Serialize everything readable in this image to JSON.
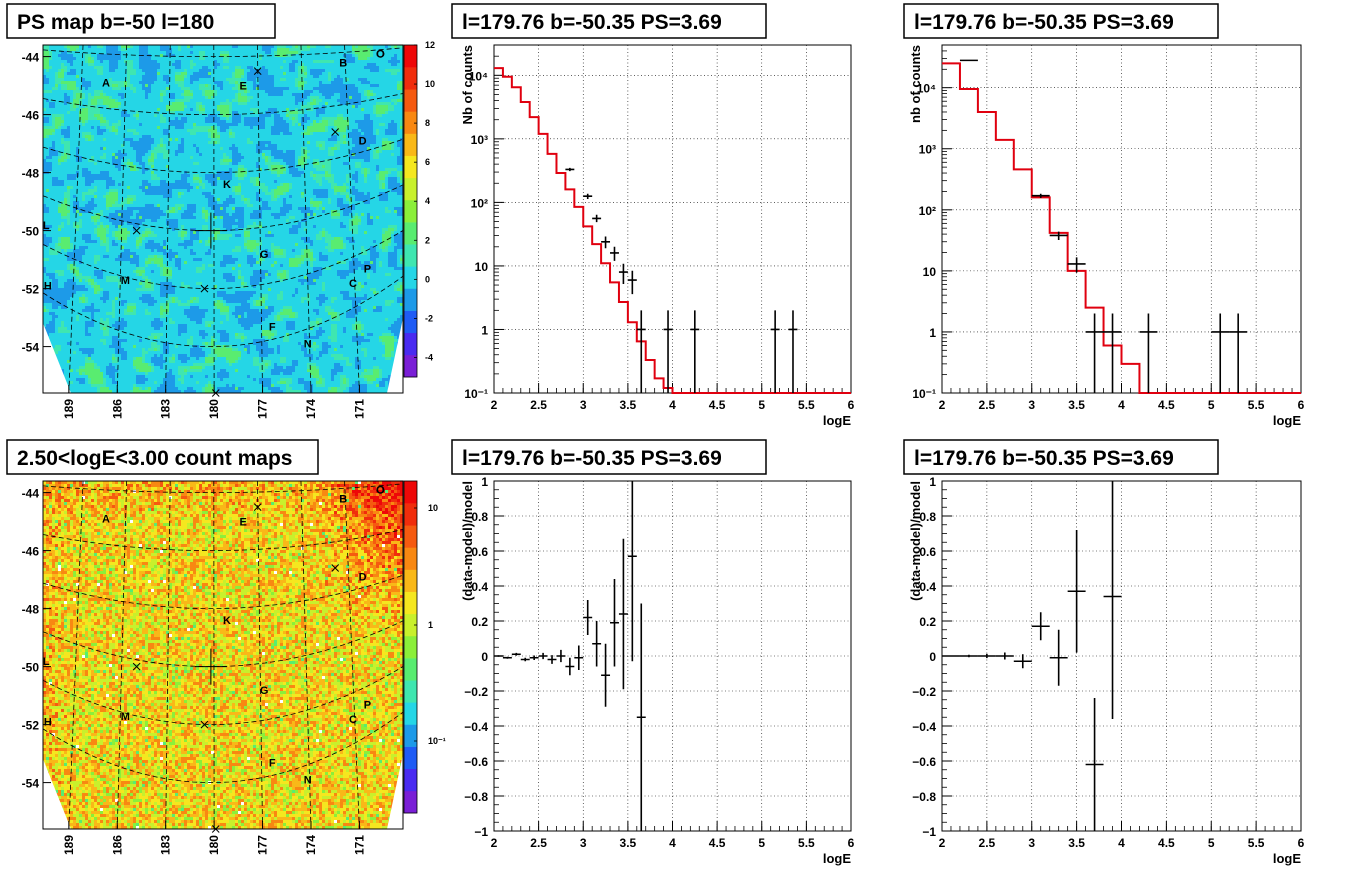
{
  "chart_data": [
    {
      "id": "ps_map",
      "type": "heatmap",
      "title": "PS map b=-50 l=180",
      "yticks": [
        -44,
        -46,
        -48,
        -50,
        -52,
        -54
      ],
      "xticks": [
        189,
        186,
        183,
        180,
        177,
        174,
        171
      ],
      "zticks": [
        "12",
        "10",
        "8",
        "6",
        "4",
        "2",
        "0",
        "-2",
        "-4"
      ],
      "zlim": [
        -5,
        12
      ],
      "colormap": [
        "#7a1fd6",
        "#4a2bf0",
        "#1f5cf5",
        "#1d9ae8",
        "#25d6e6",
        "#3fe6b0",
        "#59ec70",
        "#8bef3a",
        "#c8f02c",
        "#f5e71f",
        "#f9b818",
        "#f88812",
        "#f55a10",
        "#f02d0c",
        "#ee0808"
      ],
      "labels": [
        {
          "text": "A",
          "l": 186.7,
          "b": -44.9
        },
        {
          "text": "B",
          "l": 172.0,
          "b": -44.2
        },
        {
          "text": "E",
          "l": 178.2,
          "b": -45.0
        },
        {
          "text": "D",
          "l": 170.8,
          "b": -46.9
        },
        {
          "text": "K",
          "l": 179.2,
          "b": -48.4
        },
        {
          "text": "L",
          "l": 190.4,
          "b": -49.8
        },
        {
          "text": "G",
          "l": 176.9,
          "b": -50.8
        },
        {
          "text": "P",
          "l": 170.5,
          "b": -51.3
        },
        {
          "text": "H",
          "l": 190.3,
          "b": -51.9
        },
        {
          "text": "M",
          "l": 185.5,
          "b": -51.7
        },
        {
          "text": "C",
          "l": 171.4,
          "b": -51.8
        },
        {
          "text": "F",
          "l": 176.4,
          "b": -53.3
        },
        {
          "text": "N",
          "l": 174.2,
          "b": -53.9
        },
        {
          "text": "O",
          "l": 169.7,
          "b": -43.9
        }
      ],
      "markers": [
        {
          "l": 177.3,
          "b": -44.5
        },
        {
          "l": 172.5,
          "b": -46.6
        },
        {
          "l": 184.8,
          "b": -50.0
        },
        {
          "l": 180.6,
          "b": -52.0
        },
        {
          "l": 179.9,
          "b": -55.6
        }
      ],
      "center": {
        "l": 180.2,
        "b": -50.0
      }
    },
    {
      "id": "count_map",
      "type": "heatmap",
      "title": "2.50<logE<3.00 count maps",
      "yticks": [
        -44,
        -46,
        -48,
        -50,
        -52,
        -54
      ],
      "xticks": [
        189,
        186,
        183,
        180,
        177,
        174,
        171
      ],
      "zticks": [
        "10",
        "1",
        "10⁻¹"
      ],
      "zscale": "log",
      "colormap": [
        "#7a1fd6",
        "#4a2bf0",
        "#1f5cf5",
        "#1d9ae8",
        "#25d6e6",
        "#3fe6b0",
        "#59ec70",
        "#8bef3a",
        "#c8f02c",
        "#f5e71f",
        "#f9b818",
        "#f88812",
        "#f55a10",
        "#f02d0c",
        "#ee0808"
      ],
      "labels": [
        {
          "text": "A",
          "l": 186.7,
          "b": -44.9
        },
        {
          "text": "B",
          "l": 172.0,
          "b": -44.2
        },
        {
          "text": "E",
          "l": 178.2,
          "b": -45.0
        },
        {
          "text": "D",
          "l": 170.8,
          "b": -46.9
        },
        {
          "text": "K",
          "l": 179.2,
          "b": -48.4
        },
        {
          "text": "L",
          "l": 190.4,
          "b": -49.8
        },
        {
          "text": "G",
          "l": 176.9,
          "b": -50.8
        },
        {
          "text": "P",
          "l": 170.5,
          "b": -51.3
        },
        {
          "text": "H",
          "l": 190.3,
          "b": -51.9
        },
        {
          "text": "M",
          "l": 185.5,
          "b": -51.7
        },
        {
          "text": "C",
          "l": 171.4,
          "b": -51.8
        },
        {
          "text": "F",
          "l": 176.4,
          "b": -53.3
        },
        {
          "text": "N",
          "l": 174.2,
          "b": -53.9
        },
        {
          "text": "O",
          "l": 169.7,
          "b": -43.9
        }
      ],
      "markers": [
        {
          "l": 177.3,
          "b": -44.5
        },
        {
          "l": 172.5,
          "b": -46.6
        },
        {
          "l": 184.8,
          "b": -50.0
        },
        {
          "l": 180.6,
          "b": -52.0
        },
        {
          "l": 179.9,
          "b": -55.6
        }
      ],
      "center": {
        "l": 180.2,
        "b": -50.0
      }
    },
    {
      "id": "spec1",
      "type": "line",
      "title": "l=179.76 b=-50.35 PS=3.69",
      "xlabel": "logE",
      "ylabel": "Nb of counts",
      "xlim": [
        2,
        6
      ],
      "ylim": [
        0.1,
        30000
      ],
      "yscale": "log",
      "xticks": [
        "2",
        "2.5",
        "3",
        "3.5",
        "4",
        "4.5",
        "5",
        "5.5",
        "6"
      ],
      "yticks": [
        "10⁻¹",
        "1",
        "10",
        "10²",
        "10³",
        "10⁴"
      ],
      "model": {
        "edges": [
          2.0,
          2.1,
          2.2,
          2.3,
          2.4,
          2.5,
          2.6,
          2.7,
          2.8,
          2.9,
          3.0,
          3.1,
          3.2,
          3.3,
          3.4,
          3.5,
          3.6,
          3.7,
          3.8,
          3.9,
          4.0,
          6.0
        ],
        "values": [
          13000,
          9500,
          6500,
          3800,
          2200,
          1200,
          580,
          290,
          160,
          85,
          42,
          22,
          11,
          5.5,
          2.7,
          1.3,
          0.65,
          0.33,
          0.17,
          0.12,
          0.1
        ]
      },
      "data": [
        {
          "x": 2.85,
          "y": 330,
          "lo": 310,
          "hi": 350,
          "xerr": 0.05
        },
        {
          "x": 3.05,
          "y": 125,
          "lo": 113,
          "hi": 137,
          "xerr": 0.05
        },
        {
          "x": 3.15,
          "y": 56,
          "lo": 49,
          "hi": 64,
          "xerr": 0.05
        },
        {
          "x": 3.25,
          "y": 24,
          "lo": 19,
          "hi": 29,
          "xerr": 0.05
        },
        {
          "x": 3.35,
          "y": 16,
          "lo": 12,
          "hi": 20,
          "xerr": 0.05
        },
        {
          "x": 3.45,
          "y": 8,
          "lo": 5.2,
          "hi": 10.8,
          "xerr": 0.05
        },
        {
          "x": 3.55,
          "y": 6,
          "lo": 3.6,
          "hi": 8.4,
          "xerr": 0.05
        },
        {
          "x": 3.65,
          "y": 1,
          "lo": 0.1,
          "hi": 2,
          "xerr": 0.05
        },
        {
          "x": 3.95,
          "y": 1,
          "lo": 0.1,
          "hi": 2,
          "xerr": 0.05
        },
        {
          "x": 4.25,
          "y": 1,
          "lo": 0.1,
          "hi": 2,
          "xerr": 0.05
        },
        {
          "x": 5.15,
          "y": 1,
          "lo": 0.1,
          "hi": 2,
          "xerr": 0.05
        },
        {
          "x": 5.35,
          "y": 1,
          "lo": 0.1,
          "hi": 2,
          "xerr": 0.05
        }
      ]
    },
    {
      "id": "spec2",
      "type": "line",
      "title": "l=179.76 b=-50.35 PS=3.69",
      "xlabel": "logE",
      "ylabel": "nb of counts",
      "xlim": [
        2,
        6
      ],
      "ylim": [
        0.1,
        50000
      ],
      "yscale": "log",
      "xticks": [
        "2",
        "2.5",
        "3",
        "3.5",
        "4",
        "4.5",
        "5",
        "5.5",
        "6"
      ],
      "yticks": [
        "10⁻¹",
        "1",
        "10",
        "10²",
        "10³",
        "10⁴"
      ],
      "model": {
        "edges": [
          2.0,
          2.2,
          2.4,
          2.6,
          2.8,
          3.0,
          3.2,
          3.4,
          3.6,
          3.8,
          4.0,
          4.2,
          6.0
        ],
        "values": [
          25000,
          9500,
          4000,
          1400,
          460,
          160,
          42,
          10,
          2.5,
          0.6,
          0.3,
          0.1
        ]
      },
      "data": [
        {
          "x": 2.3,
          "y": 28000,
          "lo": 27500,
          "hi": 28500,
          "xerr": 0.1
        },
        {
          "x": 3.1,
          "y": 170,
          "lo": 157,
          "hi": 183,
          "xerr": 0.1
        },
        {
          "x": 3.3,
          "y": 38,
          "lo": 32,
          "hi": 44,
          "xerr": 0.1
        },
        {
          "x": 3.5,
          "y": 13,
          "lo": 9.4,
          "hi": 16.6,
          "xerr": 0.1
        },
        {
          "x": 3.7,
          "y": 1,
          "lo": 0.1,
          "hi": 2,
          "xerr": 0.1
        },
        {
          "x": 3.9,
          "y": 1,
          "lo": 0.1,
          "hi": 2,
          "xerr": 0.1
        },
        {
          "x": 4.3,
          "y": 1,
          "lo": 0.1,
          "hi": 2,
          "xerr": 0.1
        },
        {
          "x": 5.1,
          "y": 1,
          "lo": 0.1,
          "hi": 2,
          "xerr": 0.1
        },
        {
          "x": 5.3,
          "y": 1,
          "lo": 0.1,
          "hi": 2,
          "xerr": 0.1
        }
      ]
    },
    {
      "id": "res1",
      "type": "scatter",
      "title": "l=179.76 b=-50.35 PS=3.69",
      "xlabel": "logE",
      "ylabel": "(data-model)/model",
      "xlim": [
        2,
        6
      ],
      "ylim": [
        -1,
        1
      ],
      "xticks": [
        "2",
        "2.5",
        "3",
        "3.5",
        "4",
        "4.5",
        "5",
        "5.5",
        "6"
      ],
      "yticks": [
        "−1",
        "−0.8",
        "−0.6",
        "−0.4",
        "−0.2",
        "0",
        "0.2",
        "0.4",
        "0.6",
        "0.8",
        "1"
      ],
      "data": [
        {
          "x": 2.05,
          "y": 0.0,
          "err": 0.005,
          "xerr": 0.05
        },
        {
          "x": 2.15,
          "y": -0.01,
          "err": 0.006,
          "xerr": 0.05
        },
        {
          "x": 2.25,
          "y": 0.01,
          "err": 0.008,
          "xerr": 0.05
        },
        {
          "x": 2.35,
          "y": -0.02,
          "err": 0.01,
          "xerr": 0.05
        },
        {
          "x": 2.45,
          "y": -0.01,
          "err": 0.013,
          "xerr": 0.05
        },
        {
          "x": 2.55,
          "y": 0.0,
          "err": 0.018,
          "xerr": 0.05
        },
        {
          "x": 2.65,
          "y": -0.02,
          "err": 0.025,
          "xerr": 0.05
        },
        {
          "x": 2.75,
          "y": 0.0,
          "err": 0.035,
          "xerr": 0.05
        },
        {
          "x": 2.85,
          "y": -0.06,
          "err": 0.05,
          "xerr": 0.05
        },
        {
          "x": 2.95,
          "y": -0.01,
          "err": 0.07,
          "xerr": 0.05
        },
        {
          "x": 3.05,
          "y": 0.22,
          "err": 0.1,
          "xerr": 0.05
        },
        {
          "x": 3.15,
          "y": 0.07,
          "err": 0.13,
          "xerr": 0.05
        },
        {
          "x": 3.25,
          "y": -0.11,
          "err": 0.18,
          "xerr": 0.05
        },
        {
          "x": 3.35,
          "y": 0.19,
          "err": 0.25,
          "xerr": 0.05
        },
        {
          "x": 3.45,
          "y": 0.24,
          "err": 0.43,
          "xerr": 0.05
        },
        {
          "x": 3.55,
          "y": 0.57,
          "err": 0.6,
          "xerr": 0.05
        },
        {
          "x": 3.65,
          "y": -0.35,
          "err": 0.65,
          "xerr": 0.05
        }
      ]
    },
    {
      "id": "res2",
      "type": "scatter",
      "title": "l=179.76 b=-50.35 PS=3.69",
      "xlabel": "logE",
      "ylabel": "(data-model)/model",
      "xlim": [
        2,
        6
      ],
      "ylim": [
        -1,
        1
      ],
      "xticks": [
        "2",
        "2.5",
        "3",
        "3.5",
        "4",
        "4.5",
        "5",
        "5.5",
        "6"
      ],
      "yticks": [
        "−1",
        "−0.8",
        "−0.6",
        "−0.4",
        "−0.2",
        "0",
        "0.2",
        "0.4",
        "0.6",
        "0.8",
        "1"
      ],
      "data": [
        {
          "x": 2.1,
          "y": 0.0,
          "err": 0.004,
          "xerr": 0.1
        },
        {
          "x": 2.3,
          "y": 0.0,
          "err": 0.007,
          "xerr": 0.1
        },
        {
          "x": 2.5,
          "y": 0.0,
          "err": 0.012,
          "xerr": 0.1
        },
        {
          "x": 2.7,
          "y": 0.0,
          "err": 0.02,
          "xerr": 0.1
        },
        {
          "x": 2.9,
          "y": -0.03,
          "err": 0.04,
          "xerr": 0.1
        },
        {
          "x": 3.1,
          "y": 0.17,
          "err": 0.08,
          "xerr": 0.1
        },
        {
          "x": 3.3,
          "y": -0.01,
          "err": 0.16,
          "xerr": 0.1
        },
        {
          "x": 3.5,
          "y": 0.37,
          "err": 0.35,
          "xerr": 0.1
        },
        {
          "x": 3.7,
          "y": -0.62,
          "err": 0.38,
          "xerr": 0.1
        },
        {
          "x": 3.9,
          "y": 0.34,
          "err": 0.7,
          "xerr": 0.1
        }
      ]
    }
  ]
}
